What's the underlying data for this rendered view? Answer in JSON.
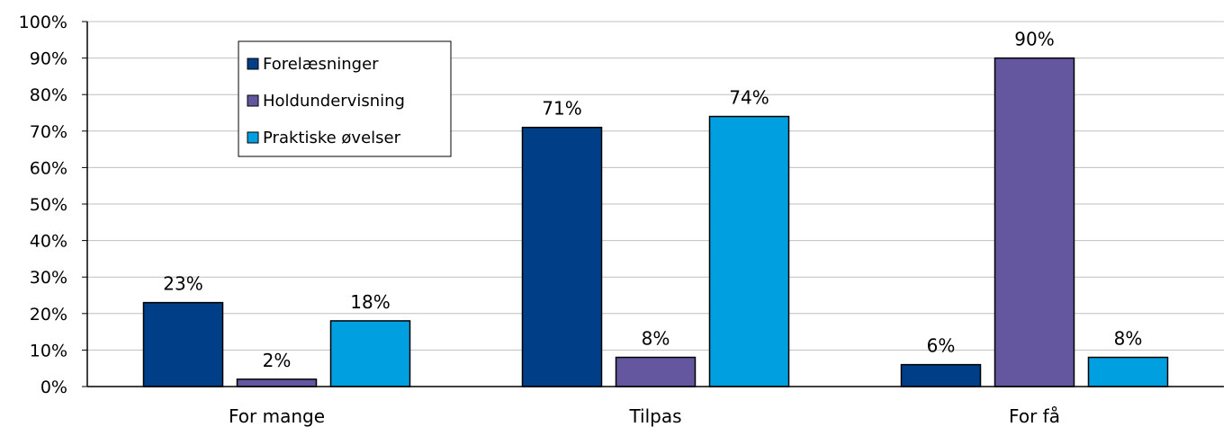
{
  "chart_data": {
    "type": "bar",
    "categories": [
      "For mange",
      "Tilpas",
      "For få"
    ],
    "series": [
      {
        "name": "Forelæsninger",
        "values": [
          23,
          71,
          6
        ],
        "labels": [
          "23%",
          "71%",
          "6%"
        ],
        "color": "#003f87"
      },
      {
        "name": "Holdundervisning",
        "values": [
          2,
          8,
          90
        ],
        "labels": [
          "2%",
          "8%",
          "90%"
        ],
        "color": "#6457a0"
      },
      {
        "name": "Praktiske øvelser",
        "values": [
          18,
          74,
          8
        ],
        "labels": [
          "18%",
          "74%",
          "8%"
        ],
        "color": "#009fe0"
      }
    ],
    "ylim": [
      0,
      100
    ],
    "yticks": [
      "0%",
      "10%",
      "20%",
      "30%",
      "40%",
      "50%",
      "60%",
      "70%",
      "80%",
      "90%",
      "100%"
    ],
    "grid": true,
    "legend_position": "top-left",
    "title": "",
    "xlabel": "",
    "ylabel": ""
  }
}
